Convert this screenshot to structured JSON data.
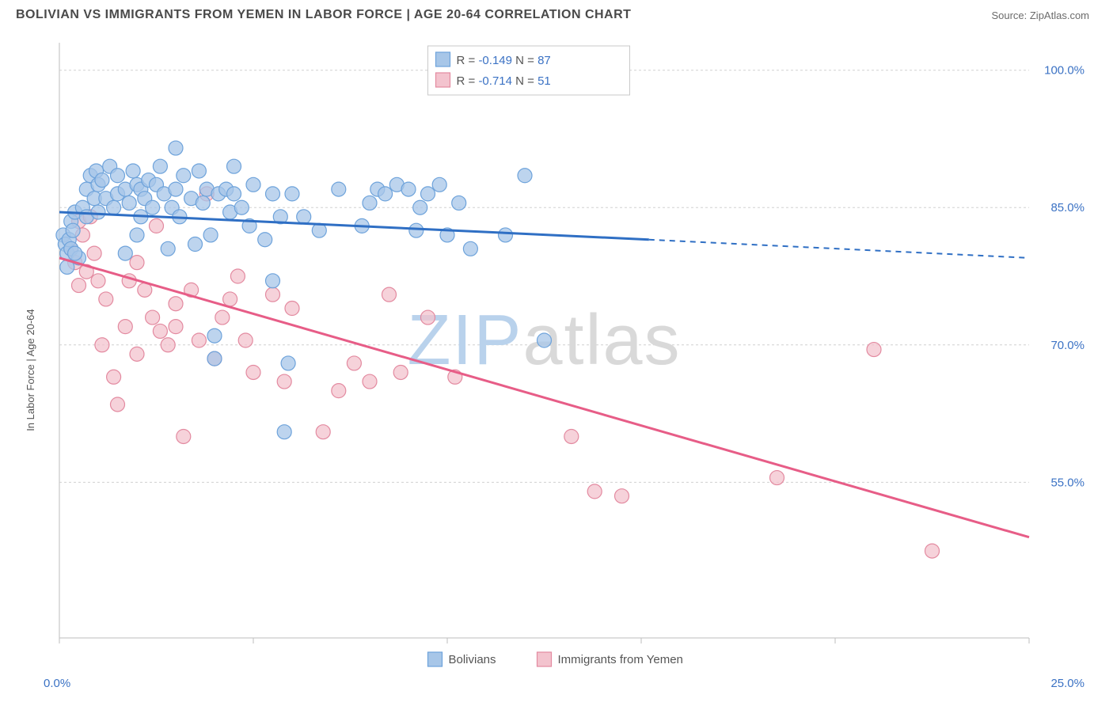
{
  "header": {
    "title": "BOLIVIAN VS IMMIGRANTS FROM YEMEN IN LABOR FORCE | AGE 20-64 CORRELATION CHART",
    "source": "Source: ZipAtlas.com"
  },
  "chart": {
    "type": "scatter",
    "y_axis_label": "In Labor Force | Age 20-64",
    "background_color": "#ffffff",
    "plot_border_color": "#bdbdbd",
    "grid_color": "#d0d0d0",
    "xlim": [
      0,
      25
    ],
    "ylim": [
      38,
      103
    ],
    "x_ticks": [
      0,
      5,
      10,
      15,
      20,
      25
    ],
    "x_tick_labels": [
      "0.0%",
      "",
      "",
      "",
      "",
      "25.0%"
    ],
    "y_ticks": [
      55,
      70,
      85,
      100
    ],
    "y_tick_labels": [
      "55.0%",
      "70.0%",
      "85.0%",
      "100.0%"
    ],
    "watermark": {
      "zip": "ZIP",
      "atlas": "atlas"
    },
    "series": [
      {
        "name": "Bolivians",
        "marker_fill": "#a7c6e8",
        "marker_stroke": "#6ea3db",
        "marker_opacity": 0.75,
        "marker_radius": 9,
        "trend_color": "#2f6fc4",
        "trend_width": 3,
        "R": "-0.149",
        "N": "87",
        "trend_start": {
          "x": 0,
          "y": 84.5
        },
        "trend_solid_end": {
          "x": 15.2,
          "y": 81.5
        },
        "trend_dash_end": {
          "x": 25,
          "y": 79.5
        },
        "points": [
          {
            "x": 0.1,
            "y": 82
          },
          {
            "x": 0.15,
            "y": 81
          },
          {
            "x": 0.2,
            "y": 80
          },
          {
            "x": 0.25,
            "y": 81.5
          },
          {
            "x": 0.3,
            "y": 83.5
          },
          {
            "x": 0.3,
            "y": 80.5
          },
          {
            "x": 0.35,
            "y": 82.5
          },
          {
            "x": 0.4,
            "y": 84.5
          },
          {
            "x": 0.5,
            "y": 79.5
          },
          {
            "x": 0.6,
            "y": 85
          },
          {
            "x": 0.7,
            "y": 87
          },
          {
            "x": 0.7,
            "y": 84
          },
          {
            "x": 0.8,
            "y": 88.5
          },
          {
            "x": 0.9,
            "y": 86
          },
          {
            "x": 0.95,
            "y": 89
          },
          {
            "x": 1.0,
            "y": 87.5
          },
          {
            "x": 1.0,
            "y": 84.5
          },
          {
            "x": 1.1,
            "y": 88
          },
          {
            "x": 1.2,
            "y": 86
          },
          {
            "x": 1.3,
            "y": 89.5
          },
          {
            "x": 1.4,
            "y": 85
          },
          {
            "x": 1.5,
            "y": 88.5
          },
          {
            "x": 1.5,
            "y": 86.5
          },
          {
            "x": 1.7,
            "y": 87
          },
          {
            "x": 1.7,
            "y": 80
          },
          {
            "x": 1.8,
            "y": 85.5
          },
          {
            "x": 1.9,
            "y": 89
          },
          {
            "x": 2.0,
            "y": 87.5
          },
          {
            "x": 2.1,
            "y": 84
          },
          {
            "x": 2.1,
            "y": 87
          },
          {
            "x": 2.2,
            "y": 86
          },
          {
            "x": 2.3,
            "y": 88
          },
          {
            "x": 2.4,
            "y": 85
          },
          {
            "x": 2.5,
            "y": 87.5
          },
          {
            "x": 2.6,
            "y": 89.5
          },
          {
            "x": 2.7,
            "y": 86.5
          },
          {
            "x": 2.8,
            "y": 80.5
          },
          {
            "x": 2.9,
            "y": 85
          },
          {
            "x": 3.0,
            "y": 91.5
          },
          {
            "x": 3.0,
            "y": 87
          },
          {
            "x": 3.1,
            "y": 84
          },
          {
            "x": 3.2,
            "y": 88.5
          },
          {
            "x": 3.4,
            "y": 86
          },
          {
            "x": 3.5,
            "y": 81
          },
          {
            "x": 3.6,
            "y": 89
          },
          {
            "x": 3.7,
            "y": 85.5
          },
          {
            "x": 3.8,
            "y": 87
          },
          {
            "x": 3.9,
            "y": 82
          },
          {
            "x": 4.0,
            "y": 68.5
          },
          {
            "x": 4.0,
            "y": 71
          },
          {
            "x": 4.1,
            "y": 86.5
          },
          {
            "x": 4.3,
            "y": 87
          },
          {
            "x": 4.4,
            "y": 84.5
          },
          {
            "x": 4.5,
            "y": 86.5
          },
          {
            "x": 4.5,
            "y": 89.5
          },
          {
            "x": 4.7,
            "y": 85
          },
          {
            "x": 4.9,
            "y": 83
          },
          {
            "x": 5.0,
            "y": 87.5
          },
          {
            "x": 5.3,
            "y": 81.5
          },
          {
            "x": 5.5,
            "y": 86.5
          },
          {
            "x": 5.5,
            "y": 77
          },
          {
            "x": 5.7,
            "y": 84
          },
          {
            "x": 5.8,
            "y": 60.5
          },
          {
            "x": 5.9,
            "y": 68
          },
          {
            "x": 6.0,
            "y": 86.5
          },
          {
            "x": 6.3,
            "y": 84
          },
          {
            "x": 6.7,
            "y": 82.5
          },
          {
            "x": 7.2,
            "y": 87
          },
          {
            "x": 7.8,
            "y": 83
          },
          {
            "x": 8.0,
            "y": 85.5
          },
          {
            "x": 8.2,
            "y": 87
          },
          {
            "x": 8.4,
            "y": 86.5
          },
          {
            "x": 8.7,
            "y": 87.5
          },
          {
            "x": 9.0,
            "y": 87
          },
          {
            "x": 9.2,
            "y": 82.5
          },
          {
            "x": 9.3,
            "y": 85
          },
          {
            "x": 9.5,
            "y": 86.5
          },
          {
            "x": 9.8,
            "y": 87.5
          },
          {
            "x": 10.0,
            "y": 82
          },
          {
            "x": 10.3,
            "y": 85.5
          },
          {
            "x": 10.6,
            "y": 80.5
          },
          {
            "x": 11.5,
            "y": 82
          },
          {
            "x": 12.0,
            "y": 88.5
          },
          {
            "x": 12.5,
            "y": 70.5
          },
          {
            "x": 0.2,
            "y": 78.5
          },
          {
            "x": 0.4,
            "y": 80
          },
          {
            "x": 2.0,
            "y": 82
          }
        ]
      },
      {
        "name": "Immigrants from Yemen",
        "marker_fill": "#f3c3ce",
        "marker_stroke": "#e38aa0",
        "marker_opacity": 0.75,
        "marker_radius": 9,
        "trend_color": "#e75d87",
        "trend_width": 3,
        "R": "-0.714",
        "N": "51",
        "trend_start": {
          "x": 0,
          "y": 79.5
        },
        "trend_solid_end": {
          "x": 25,
          "y": 49
        },
        "trend_dash_end": null,
        "points": [
          {
            "x": 0.3,
            "y": 80.5
          },
          {
            "x": 0.4,
            "y": 79
          },
          {
            "x": 0.5,
            "y": 83.5
          },
          {
            "x": 0.5,
            "y": 76.5
          },
          {
            "x": 0.6,
            "y": 82
          },
          {
            "x": 0.7,
            "y": 78
          },
          {
            "x": 0.8,
            "y": 84
          },
          {
            "x": 0.9,
            "y": 80
          },
          {
            "x": 1.0,
            "y": 77
          },
          {
            "x": 1.1,
            "y": 70
          },
          {
            "x": 1.2,
            "y": 75
          },
          {
            "x": 1.4,
            "y": 66.5
          },
          {
            "x": 1.5,
            "y": 63.5
          },
          {
            "x": 1.7,
            "y": 72
          },
          {
            "x": 1.8,
            "y": 77
          },
          {
            "x": 2.0,
            "y": 69
          },
          {
            "x": 2.2,
            "y": 76
          },
          {
            "x": 2.4,
            "y": 73
          },
          {
            "x": 2.5,
            "y": 83
          },
          {
            "x": 2.6,
            "y": 71.5
          },
          {
            "x": 2.8,
            "y": 70
          },
          {
            "x": 3.0,
            "y": 74.5
          },
          {
            "x": 3.0,
            "y": 72
          },
          {
            "x": 3.2,
            "y": 60
          },
          {
            "x": 3.4,
            "y": 76
          },
          {
            "x": 3.6,
            "y": 70.5
          },
          {
            "x": 3.8,
            "y": 86.5
          },
          {
            "x": 4.0,
            "y": 68.5
          },
          {
            "x": 4.2,
            "y": 73
          },
          {
            "x": 4.4,
            "y": 75
          },
          {
            "x": 4.6,
            "y": 77.5
          },
          {
            "x": 4.8,
            "y": 70.5
          },
          {
            "x": 5.0,
            "y": 67
          },
          {
            "x": 5.5,
            "y": 75.5
          },
          {
            "x": 5.8,
            "y": 66
          },
          {
            "x": 6.0,
            "y": 74
          },
          {
            "x": 6.8,
            "y": 60.5
          },
          {
            "x": 7.2,
            "y": 65
          },
          {
            "x": 7.6,
            "y": 68
          },
          {
            "x": 8.0,
            "y": 66
          },
          {
            "x": 8.5,
            "y": 75.5
          },
          {
            "x": 8.8,
            "y": 67
          },
          {
            "x": 9.5,
            "y": 73
          },
          {
            "x": 10.2,
            "y": 66.5
          },
          {
            "x": 13.2,
            "y": 60
          },
          {
            "x": 13.8,
            "y": 54
          },
          {
            "x": 14.5,
            "y": 53.5
          },
          {
            "x": 18.5,
            "y": 55.5
          },
          {
            "x": 21.0,
            "y": 69.5
          },
          {
            "x": 22.5,
            "y": 47.5
          },
          {
            "x": 2.0,
            "y": 79
          }
        ]
      }
    ],
    "legend_top": {
      "rlabel": "R =",
      "nlabel": "N =",
      "text_color": "#555555",
      "value_color": "#3b72c4"
    },
    "legend_bottom": {
      "swatch_stroke": "#888888"
    }
  }
}
